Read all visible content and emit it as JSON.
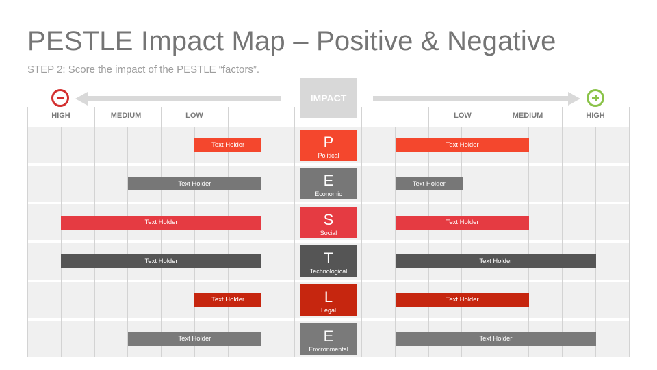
{
  "title": "PESTLE Impact Map – Positive & Negative",
  "subtitle": "STEP 2: Score the impact of the PESTLE “factors”.",
  "impact_label": "IMPACT",
  "icons": {
    "negative": "minus-circle-icon",
    "positive": "plus-circle-icon"
  },
  "colors": {
    "negative_sign": "#d32f2f",
    "positive_sign": "#8bc34a",
    "political": "#f4472d",
    "economic": "#777777",
    "social": "#e53b42",
    "technological": "#555555",
    "legal": "#c6260f",
    "environmental": "#7a7a7a"
  },
  "scale": {
    "negative": [
      "HIGH",
      "MEDIUM",
      "LOW"
    ],
    "positive": [
      "LOW",
      "MEDIUM",
      "HIGH"
    ]
  },
  "factors": [
    {
      "letter": "P",
      "name": "Political",
      "color": "#f4472d",
      "negative": {
        "label": "Text Holder",
        "level": 1
      },
      "positive": {
        "label": "Text Holder",
        "level": 2
      }
    },
    {
      "letter": "E",
      "name": "Economic",
      "color": "#777777",
      "negative": {
        "label": "Text Holder",
        "level": 2
      },
      "positive": {
        "label": "Text Holder",
        "level": 1
      }
    },
    {
      "letter": "S",
      "name": "Social",
      "color": "#e53b42",
      "negative": {
        "label": "Text Holder",
        "level": 3
      },
      "positive": {
        "label": "Text Holder",
        "level": 2
      }
    },
    {
      "letter": "T",
      "name": "Technological",
      "color": "#555555",
      "negative": {
        "label": "Text Holder",
        "level": 3
      },
      "positive": {
        "label": "Text Holder",
        "level": 3
      }
    },
    {
      "letter": "L",
      "name": "Legal",
      "color": "#c6260f",
      "negative": {
        "label": "Text Holder",
        "level": 1
      },
      "positive": {
        "label": "Text Holder",
        "level": 2
      }
    },
    {
      "letter": "E",
      "name": "Environmental",
      "color": "#7a7a7a",
      "negative": {
        "label": "Text Holder",
        "level": 2
      },
      "positive": {
        "label": "Text Holder",
        "level": 3
      }
    }
  ]
}
